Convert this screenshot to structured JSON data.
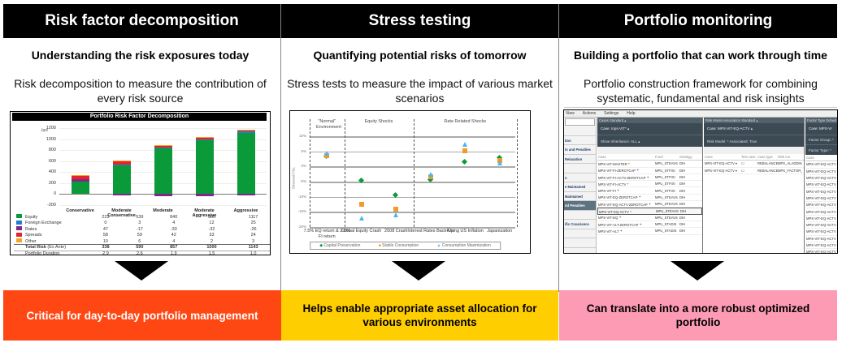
{
  "columns": [
    {
      "title": "Risk factor decomposition",
      "subtitle": "Understanding the risk exposures today",
      "description": "Risk decomposition to measure the contribution of every risk source",
      "outcome": "Critical for day-to-day portfolio management",
      "outcome_color": "#FF4713",
      "outcome_text_color": "#FFFFFF"
    },
    {
      "title": "Stress testing",
      "subtitle": "Quantifying potential risks of tomorrow",
      "description": "Stress tests to measure the impact of various market scenarios",
      "outcome": "Helps enable appropriate asset allocation for various environments",
      "outcome_color": "#FFCE00",
      "outcome_text_color": "#000000"
    },
    {
      "title": "Portfolio monitoring",
      "subtitle": "Building a portfolio that can work through time",
      "description": "Portfolio construction framework for combining systematic, fundamental and risk insights",
      "outcome": "Can translate into a more robust optimized portfolio",
      "outcome_color": "#FC9BB3",
      "outcome_text_color": "#000000"
    }
  ],
  "chart_data": [
    {
      "type": "bar",
      "stacked": true,
      "title": "Portfolio Risk Factor Decomposition",
      "ylabel": "bps",
      "ylim": [
        -200,
        1200
      ],
      "yticks": [
        "1200",
        "1000",
        "800",
        "600",
        "400",
        "200",
        "0",
        "-200"
      ],
      "categories": [
        "Conservative",
        "Moderate Conservative",
        "Moderate",
        "Moderate Aggressive",
        "Aggressive"
      ],
      "series": [
        {
          "name": "Equity",
          "color": "#0A9A3A",
          "values": [
            223,
            539,
            840,
            985,
            1117
          ]
        },
        {
          "name": "Foreign Exchange",
          "color": "#1F7FD0",
          "values": [
            0,
            3,
            4,
            12,
            25
          ]
        },
        {
          "name": "Rates",
          "color": "#7B2A8C",
          "values": [
            47,
            -17,
            -33,
            -32,
            -26
          ]
        },
        {
          "name": "Spreads",
          "color": "#E8232A",
          "values": [
            58,
            59,
            42,
            33,
            24
          ]
        },
        {
          "name": "Other",
          "color": "#F5A623",
          "values": [
            10,
            6,
            4,
            2,
            3
          ]
        }
      ],
      "totals": {
        "label": "Total Risk",
        "label_suffix": "(Ex Ante)",
        "values": [
          338,
          590,
          857,
          1000,
          1143
        ]
      },
      "duration": {
        "label": "Portfolio Duration",
        "values": [
          "2.9",
          "2.6",
          "1.9",
          "1.5",
          "1.0"
        ]
      }
    },
    {
      "type": "scatter",
      "ylabel": "Stressed P&L",
      "ylim": [
        -20,
        10
      ],
      "yticks": [
        "10%",
        "5%",
        "0%",
        "-5%",
        "-10%",
        "-15%",
        "-20%"
      ],
      "groups": [
        {
          "label": "\"Normal\" Environment",
          "span": 1
        },
        {
          "label": "Equity Shocks",
          "span": 2
        },
        {
          "label": "Rate Related Shocks",
          "span": 3
        }
      ],
      "categories": [
        "7.5% EQ return & 2.5% FI return",
        "Global Equity Crash",
        "2008 Crash",
        "Interest Rates Back-Up",
        "Rising US Inflation",
        "Japanization"
      ],
      "series": [
        {
          "name": "Capital Preservation",
          "marker": "diamond",
          "color": "#0A9A3A",
          "values": [
            3.2,
            -4.8,
            -9.5,
            -4.5,
            1.5,
            2.8
          ]
        },
        {
          "name": "Stable Consumption",
          "marker": "square",
          "color": "#F29A2A",
          "values": [
            3.7,
            -12.5,
            -14.0,
            -3.5,
            5.3,
            2.0
          ]
        },
        {
          "name": "Consumption Maximization",
          "marker": "triangle",
          "color": "#4AB6EE",
          "values": [
            4.3,
            -17.0,
            -16.0,
            -2.5,
            7.3,
            1.2
          ]
        }
      ]
    }
  ],
  "monitoring_app": {
    "menu": [
      "View",
      "Actions",
      "Settings",
      "Help"
    ],
    "sidebar": [
      "",
      "tion",
      "ts and Penalties",
      "Relaxation",
      "",
      "n",
      "e Maintained",
      "Maintained",
      "nd Penalties",
      "",
      "ific Covariance",
      "",
      "",
      "",
      "",
      "",
      "ge History",
      ""
    ],
    "sidebar_selected": 8,
    "panes": [
      {
        "tab": "Cases",
        "tab_value": "Standard",
        "selector": "Case: mps-VIT*",
        "filter": "Show Inheritance: ALL",
        "columns": [
          "Case",
          "Fund",
          "Strategy"
        ],
        "rows": [
          [
            "MPS-VIT-MASTER",
            "MPU_STEAVS",
            "DIH",
            "o"
          ],
          [
            "MPS-VIT-FI-ZEROTCAP",
            "MPU_STFIXI",
            "DIH",
            "p"
          ],
          [
            "MPS-VIT-FI-ACTV-ZEROTCAP",
            "MPU_STFIXI",
            "DIH",
            "p"
          ],
          [
            "MPS-VIT-FI-ACTV",
            "MPU_STFIXI",
            "DIH",
            "o"
          ],
          [
            "MPS-VIT-FI",
            "MPU_STFIXI",
            "DIH",
            "p"
          ],
          [
            "MPS-VIT-EQ-ZEROTCAP",
            "MPU_STEAVS",
            "DIH",
            "p"
          ],
          [
            "MPS-VIT-EQ-ACTV-ZEROTCAP",
            "MPU_STEAVS",
            "DIH",
            "p"
          ],
          [
            "MPS-VIT-EQ-ACTV",
            "MPU_STEAVS",
            "DIH",
            "o"
          ],
          [
            "MPS-VIT-EQ",
            "MPU_STEAVS",
            "DIH",
            "p"
          ],
          [
            "MPS-VIT-ALT-ZEROTCAP",
            "MPU_STADIS",
            "DIH",
            "p"
          ],
          [
            "MPS-VIT-ALT",
            "MPU_STADIS",
            "DIH",
            "p"
          ]
        ],
        "selected_row": 7
      },
      {
        "tab": "Risk Model Association",
        "tab_value": "Standard",
        "selector": "Case: MPS-VIT-EQ-ACTV",
        "filter": "Risk Model: *   Associated: True",
        "columns": [
          "Case",
          "Test case",
          "Case type",
          "Risk mo"
        ],
        "rows": [
          [
            "MPS-VIT-EQ-ACTV",
            "",
            "REBALANCE",
            "MPS_ALADDIN_FI"
          ],
          [
            "MPS-VIT-EQ-ACTV",
            "",
            "REBALANCE",
            "MPS_FACTOR_EM"
          ]
        ]
      },
      {
        "tab": "Factor Type Default",
        "selector": "Case: MPS-VI",
        "filter1": "Factor Group: *",
        "filter2": "Factor Type: *",
        "columns": [
          "Case"
        ],
        "rows": [
          "MPS-VIT-EQ-ACTV",
          "MPS-VIT-EQ-ACTV",
          "MPS-VIT-EQ-ACTV",
          "MPS-VIT-EQ-ACTV",
          "MPS-VIT-EQ-ACTV",
          "MPS-VIT-EQ-ACTV",
          "MPS-VIT-EQ-ACTV",
          "MPS-VIT-EQ-ACTV",
          "MPS-VIT-EQ-ACTV",
          "MPS-VIT-EQ-ACTV",
          "MPS-VIT-EQ-ACTV",
          "MPS-VIT-EQ-ACTV",
          "MPS-VIT-EQ-ACTV",
          "MPS-VIT-EQ-ACTV"
        ]
      }
    ]
  }
}
